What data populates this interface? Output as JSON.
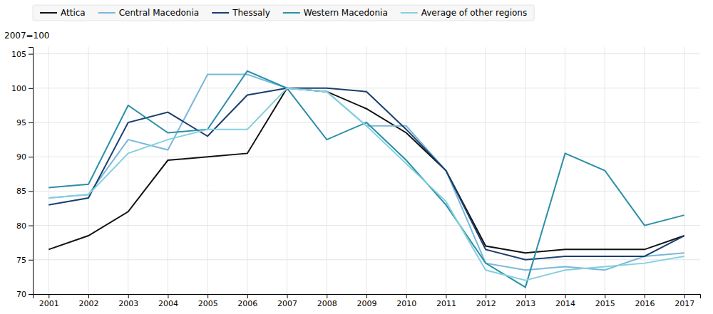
{
  "chart_data": {
    "type": "line",
    "ylabel": "2007=100",
    "x": [
      2001,
      2002,
      2003,
      2004,
      2005,
      2006,
      2007,
      2008,
      2009,
      2010,
      2011,
      2012,
      2013,
      2014,
      2015,
      2016,
      2017
    ],
    "series": [
      {
        "name": "Attica",
        "color": "#111111",
        "values": [
          76.5,
          78.5,
          82.0,
          89.5,
          90.0,
          90.5,
          100.0,
          99.5,
          97.0,
          93.5,
          88.0,
          77.0,
          76.0,
          76.5,
          76.5,
          76.5,
          78.5
        ]
      },
      {
        "name": "Central Macedonia",
        "color": "#7ab8d9",
        "values": [
          84.0,
          84.5,
          92.5,
          91.0,
          102.0,
          102.0,
          100.0,
          99.5,
          94.5,
          94.5,
          88.0,
          74.5,
          73.5,
          74.0,
          73.5,
          75.5,
          76.0
        ]
      },
      {
        "name": "Thessaly",
        "color": "#1a3f6f",
        "values": [
          83.0,
          84.0,
          95.0,
          96.5,
          93.0,
          99.0,
          100.0,
          100.0,
          99.5,
          94.0,
          88.0,
          76.5,
          75.0,
          75.5,
          75.5,
          75.5,
          78.5
        ]
      },
      {
        "name": "Western Macedonia",
        "color": "#2a8fa8",
        "values": [
          85.5,
          86.0,
          97.5,
          93.5,
          94.0,
          102.5,
          100.0,
          92.5,
          95.0,
          89.5,
          83.0,
          74.5,
          71.0,
          90.5,
          88.0,
          80.0,
          81.5
        ]
      },
      {
        "name": "Average of other regions",
        "color": "#85d0e0",
        "values": [
          84.0,
          84.5,
          90.5,
          92.5,
          94.0,
          94.0,
          100.0,
          99.5,
          94.5,
          89.0,
          83.5,
          73.5,
          72.0,
          73.5,
          74.0,
          74.5,
          75.5
        ]
      }
    ],
    "xlim": [
      2000.6,
      2017.4
    ],
    "xticks": [
      2001,
      2002,
      2003,
      2004,
      2005,
      2006,
      2007,
      2008,
      2009,
      2010,
      2011,
      2012,
      2013,
      2014,
      2015,
      2016,
      2017
    ],
    "ylim": [
      70,
      106
    ],
    "yticks": [
      70,
      75,
      80,
      85,
      90,
      95,
      100,
      105
    ],
    "grid": true,
    "legend": "top"
  }
}
